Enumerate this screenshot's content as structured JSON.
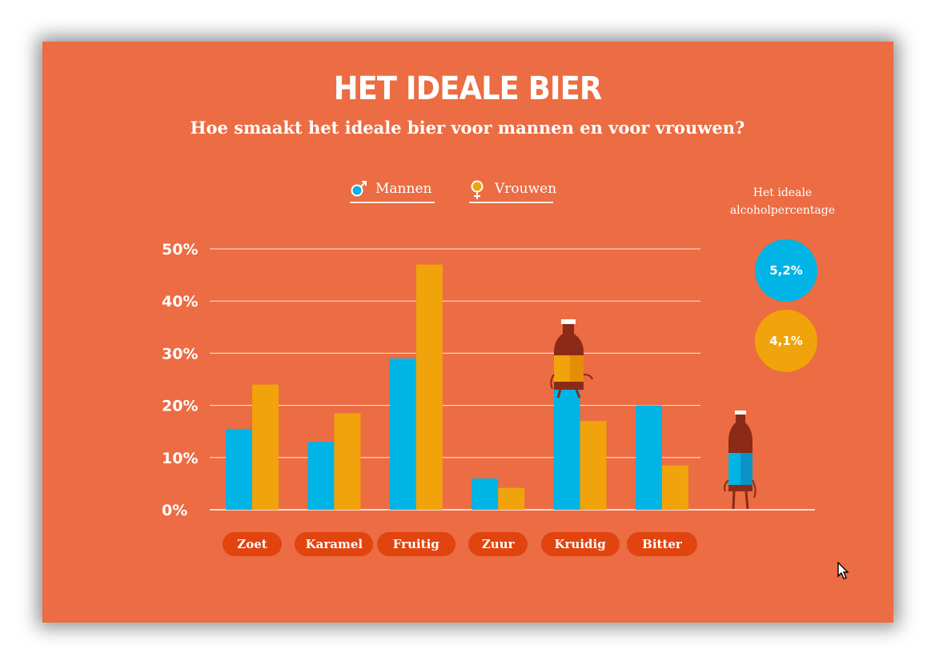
{
  "colors": {
    "background": "#ec6c43",
    "men": "#00b4e6",
    "women": "#f0a30a",
    "pill": "#e2440f"
  },
  "header": {
    "title": "HET IDEALE BIER",
    "subtitle": "Hoe smaakt het ideale bier voor mannen en voor vrouwen?"
  },
  "legend": [
    {
      "label": "Mannen",
      "icon": "male-symbol-icon"
    },
    {
      "label": "Vrouwen",
      "icon": "female-symbol-icon"
    }
  ],
  "ideal_alcohol": {
    "label_line1": "Het ideale",
    "label_line2": "alcoholpercentage",
    "men": "5,2%",
    "women": "4,1%"
  },
  "chart_data": {
    "type": "bar",
    "title": "HET IDEALE BIER",
    "subtitle": "Hoe smaakt het ideale bier voor mannen en voor vrouwen?",
    "categories": [
      "Zoet",
      "Karamel",
      "Fruitig",
      "Zuur",
      "Kruidig",
      "Bitter"
    ],
    "series": [
      {
        "name": "Mannen",
        "values": [
          15.5,
          13,
          29,
          6,
          23,
          20
        ]
      },
      {
        "name": "Vrouwen",
        "values": [
          24,
          18.5,
          47,
          4.2,
          17,
          8.5
        ]
      }
    ],
    "yticks": [
      "0%",
      "10%",
      "20%",
      "30%",
      "40%",
      "50%"
    ],
    "ylim": [
      0,
      50
    ],
    "grid": true,
    "legend_position": "top-center"
  }
}
